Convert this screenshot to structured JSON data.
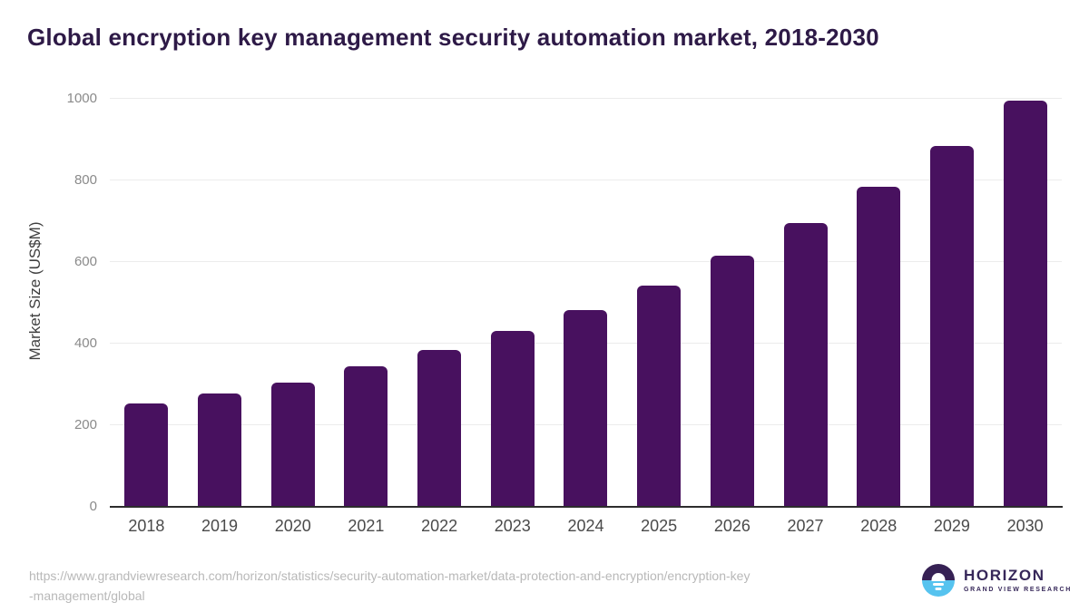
{
  "chart_data": {
    "type": "bar",
    "title": "Global encryption key management security automation market, 2018-2030",
    "categories": [
      "2018",
      "2019",
      "2020",
      "2021",
      "2022",
      "2023",
      "2024",
      "2025",
      "2026",
      "2027",
      "2028",
      "2029",
      "2030"
    ],
    "values": [
      254,
      277,
      305,
      344,
      384,
      431,
      483,
      543,
      615,
      695,
      784,
      884,
      995
    ],
    "xlabel": "",
    "ylabel": "Market Size (US$M)",
    "yticks": [
      0,
      200,
      400,
      600,
      800,
      1000
    ],
    "ylim": [
      0,
      1000
    ],
    "grid": true,
    "legend_position": "none",
    "bar_color": "#48115f",
    "title_color": "#2e1a47",
    "gridline_color": "#ececec",
    "axis_line_color": "#2d2d2d"
  },
  "footer": {
    "source_url_line1": "https://www.grandviewresearch.com/horizon/statistics/security-automation-market/data-protection-and-encryption/encryption-key",
    "source_url_line2": "-management/global",
    "logo": {
      "brand": "HORIZON",
      "subtitle": "GRAND VIEW RESEARCH",
      "brand_color": "#362759",
      "icon_top_color": "#362154",
      "icon_bottom_color": "#56c3ef"
    }
  }
}
